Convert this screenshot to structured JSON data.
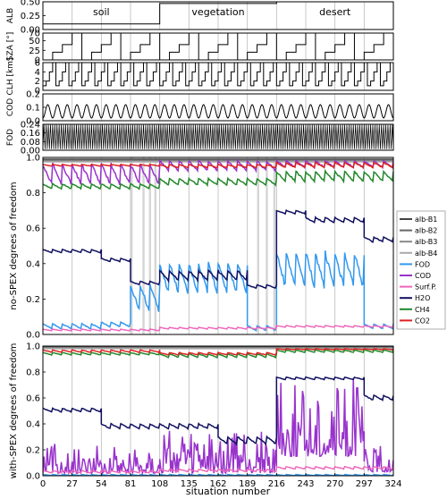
{
  "figure": {
    "shared_xlabel": "situation number",
    "x_ticks": [
      0,
      27,
      54,
      81,
      108,
      135,
      162,
      189,
      216,
      243,
      270,
      297,
      324
    ],
    "xlim": [
      0,
      324
    ],
    "grid": "vertical lines at x ticks",
    "region_labels": [
      "soil",
      "vegetation",
      "desert"
    ]
  },
  "chart_data": [
    {
      "type": "line",
      "ylabel": "ALB",
      "ylim": [
        0,
        0.5
      ],
      "yticks": [
        "0.00",
        "0.25",
        "0.50"
      ],
      "series": [
        {
          "values_desc": "",
          "color": "#000000",
          "x": [
            0,
            108,
            108,
            216,
            216,
            324
          ],
          "values": [
            0.1,
            0.1,
            0.47,
            0.47,
            0.5,
            0.5
          ]
        }
      ]
    },
    {
      "type": "line",
      "ylabel": "SZA [°]",
      "ylim": [
        0,
        70
      ],
      "yticks": [
        "0",
        "25",
        "50",
        "70"
      ],
      "pattern": "staircase 0,20,40,70 repeated with period 36 (9 per step)",
      "series": [
        {
          "color": "#000000",
          "steps": [
            0,
            20,
            40,
            70
          ],
          "step_length": 9
        }
      ]
    },
    {
      "type": "line",
      "ylabel": "CLH [km]",
      "ylim": [
        0,
        6
      ],
      "yticks": [
        "0",
        "2",
        "4",
        "6"
      ],
      "pattern": "staircase 1,2,4,6 repeated with period 12 (3 per step)",
      "series": [
        {
          "color": "#000000",
          "steps": [
            1,
            2,
            4,
            6
          ],
          "step_length": 3
        }
      ]
    },
    {
      "type": "line",
      "ylabel": "COD",
      "ylim": [
        0,
        0.2
      ],
      "yticks": [
        "0.0",
        "0.1",
        "0.2"
      ],
      "pattern": "small bumps between 0.02 and 0.12, period 9",
      "series": [
        {
          "color": "#000000",
          "min": 0.02,
          "max": 0.12,
          "period": 9
        }
      ]
    },
    {
      "type": "line",
      "ylabel": "FOD",
      "ylim": [
        0,
        0.24
      ],
      "yticks": [
        "0.00",
        "0.08",
        "0.16",
        "0.24"
      ],
      "pattern": "alternating 0.01 / 0.24 every situation",
      "series": [
        {
          "color": "#000000",
          "low": 0.01,
          "high": 0.24
        }
      ]
    },
    {
      "type": "line",
      "ylabel": "no-SPEX degrees of freedom",
      "ylim": [
        0,
        1.0
      ],
      "yticks": [
        "0.0",
        "0.2",
        "0.4",
        "0.6",
        "0.8",
        "1.0"
      ],
      "legend": "right",
      "legend_entries": [
        "alb-B1",
        "alb-B2",
        "alb-B3",
        "alb-B4",
        "FOD",
        "COD",
        "Surf.P.",
        "H2O",
        "CH4",
        "CO2"
      ],
      "shaded_x_ranges": [
        [
          81,
          83
        ],
        [
          92,
          94
        ],
        [
          98,
          100
        ],
        [
          103,
          105
        ],
        [
          198,
          200
        ],
        [
          206,
          208
        ],
        [
          213,
          215
        ]
      ],
      "series": [
        {
          "name": "alb-B1",
          "color": "#444444",
          "segments": [
            [
              0,
              324,
              0.99
            ]
          ]
        },
        {
          "name": "alb-B2",
          "color": "#666666",
          "segments": [
            [
              0,
              324,
              0.985
            ]
          ]
        },
        {
          "name": "alb-B3",
          "color": "#888888",
          "segments": [
            [
              0,
              324,
              0.98
            ]
          ]
        },
        {
          "name": "alb-B4",
          "color": "#aaaaaa",
          "segments": [
            [
              0,
              324,
              0.975
            ]
          ]
        },
        {
          "name": "FOD",
          "color": "#3399ee",
          "segments": [
            [
              0,
              54,
              0.03,
              0.06
            ],
            [
              54,
              81,
              0.04,
              0.07
            ],
            [
              81,
              108,
              0.12,
              0.28
            ],
            [
              108,
              189,
              0.22,
              0.4
            ],
            [
              189,
              216,
              0.02,
              0.05
            ],
            [
              216,
              297,
              0.25,
              0.46
            ],
            [
              297,
              324,
              0.03,
              0.06
            ]
          ]
        },
        {
          "name": "COD",
          "color": "#9933cc",
          "segments": [
            [
              0,
              108,
              0.84,
              0.96
            ],
            [
              108,
              216,
              0.92,
              0.98
            ],
            [
              216,
              324,
              0.94,
              0.98
            ]
          ]
        },
        {
          "name": "Surf.P.",
          "color": "#ee66bb",
          "segments": [
            [
              0,
              108,
              0.02,
              0.03
            ],
            [
              108,
              216,
              0.03,
              0.04
            ],
            [
              216,
              324,
              0.04,
              0.05
            ]
          ]
        },
        {
          "name": "H2O",
          "color": "#101060",
          "segments": [
            [
              0,
              54,
              0.46,
              0.48
            ],
            [
              54,
              81,
              0.41,
              0.43
            ],
            [
              81,
              108,
              0.28,
              0.3
            ],
            [
              108,
              189,
              0.3,
              0.36
            ],
            [
              189,
              216,
              0.26,
              0.28
            ],
            [
              216,
              243,
              0.68,
              0.7
            ],
            [
              243,
              297,
              0.63,
              0.66
            ],
            [
              297,
              324,
              0.52,
              0.55
            ]
          ]
        },
        {
          "name": "CH4",
          "color": "#22882a",
          "segments": [
            [
              0,
              108,
              0.82,
              0.85
            ],
            [
              108,
              216,
              0.84,
              0.88
            ],
            [
              216,
              324,
              0.86,
              0.92
            ]
          ]
        },
        {
          "name": "CO2",
          "color": "#dd2222",
          "segments": [
            [
              0,
              108,
              0.95,
              0.96
            ],
            [
              108,
              216,
              0.94,
              0.96
            ],
            [
              216,
              324,
              0.94,
              0.97
            ]
          ]
        }
      ]
    },
    {
      "type": "line",
      "ylabel": "with-SPEX degrees of freedom",
      "ylim": [
        0,
        1.0
      ],
      "yticks": [
        "0.0",
        "0.2",
        "0.4",
        "0.6",
        "0.8",
        "1.0"
      ],
      "series": [
        {
          "name": "alb-B1",
          "color": "#444444",
          "segments": [
            [
              0,
              324,
              0.995
            ]
          ]
        },
        {
          "name": "alb-B2",
          "color": "#666666",
          "segments": [
            [
              0,
              324,
              0.99
            ]
          ]
        },
        {
          "name": "alb-B3",
          "color": "#888888",
          "segments": [
            [
              0,
              324,
              0.985
            ]
          ]
        },
        {
          "name": "alb-B4",
          "color": "#aaaaaa",
          "segments": [
            [
              0,
              324,
              0.98
            ]
          ]
        },
        {
          "name": "FOD",
          "color": "#3399ee",
          "segments": [
            [
              0,
              324,
              0.0,
              0.01
            ]
          ]
        },
        {
          "name": "COD",
          "color": "#9933cc",
          "segments": [
            [
              0,
              108,
              0.02,
              0.25
            ],
            [
              108,
              216,
              0.02,
              0.35
            ],
            [
              216,
              297,
              0.15,
              0.76
            ],
            [
              297,
              324,
              0.03,
              0.25
            ]
          ]
        },
        {
          "name": "Surf.P.",
          "color": "#ee66bb",
          "segments": [
            [
              0,
              108,
              0.02,
              0.04
            ],
            [
              108,
              216,
              0.03,
              0.05
            ],
            [
              216,
              324,
              0.05,
              0.07
            ]
          ]
        },
        {
          "name": "H2O",
          "color": "#101060",
          "segments": [
            [
              0,
              54,
              0.49,
              0.52
            ],
            [
              54,
              108,
              0.36,
              0.4
            ],
            [
              108,
              162,
              0.36,
              0.4
            ],
            [
              162,
              216,
              0.24,
              0.3
            ],
            [
              216,
              297,
              0.74,
              0.76
            ],
            [
              297,
              324,
              0.58,
              0.62
            ]
          ]
        },
        {
          "name": "CH4",
          "color": "#22882a",
          "segments": [
            [
              0,
              108,
              0.93,
              0.95
            ],
            [
              108,
              216,
              0.91,
              0.94
            ],
            [
              216,
              324,
              0.95,
              0.97
            ]
          ]
        },
        {
          "name": "CO2",
          "color": "#dd2222",
          "segments": [
            [
              0,
              108,
              0.95,
              0.97
            ],
            [
              108,
              216,
              0.93,
              0.95
            ],
            [
              216,
              324,
              0.97,
              0.98
            ]
          ]
        }
      ]
    }
  ]
}
